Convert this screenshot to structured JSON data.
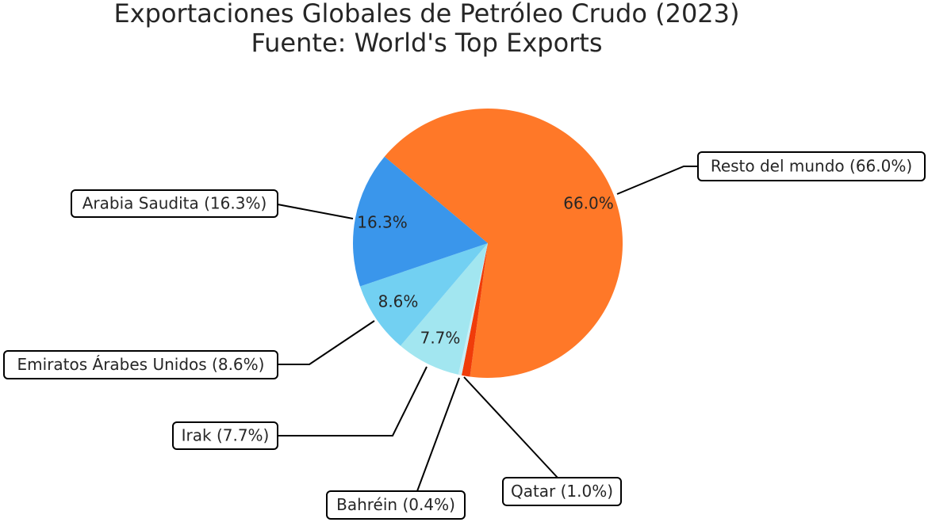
{
  "chart_data": {
    "type": "pie",
    "title": "Exportaciones Globales de Petróleo Crudo (2023)",
    "subtitle": "Fuente: World's Top Exports",
    "start_angle_deg": 140,
    "direction": "clockwise",
    "slices": [
      {
        "label": "Resto del mundo (66.0%)",
        "name": "Resto del mundo",
        "value": 66.0,
        "pct_label": "66.0%",
        "color": "#ff7828"
      },
      {
        "label": "Qatar (1.0%)",
        "name": "Qatar",
        "value": 1.0,
        "pct_label": "",
        "color": "#f03c0a"
      },
      {
        "label": "Bahréin (0.4%)",
        "name": "Bahréin",
        "value": 0.4,
        "pct_label": "",
        "color": "#c8eef6"
      },
      {
        "label": "Irak (7.7%)",
        "name": "Irak",
        "value": 7.7,
        "pct_label": "7.7%",
        "color": "#a2e6f0"
      },
      {
        "label": "Emiratos Árabes Unidos (8.6%)",
        "name": "Emiratos Árabes Unidos",
        "value": 8.6,
        "pct_label": "8.6%",
        "color": "#72d0f2"
      },
      {
        "label": "Arabia Saudita (16.3%)",
        "name": "Arabia Saudita",
        "value": 16.3,
        "pct_label": "16.3%",
        "color": "#3a96eb"
      }
    ]
  }
}
